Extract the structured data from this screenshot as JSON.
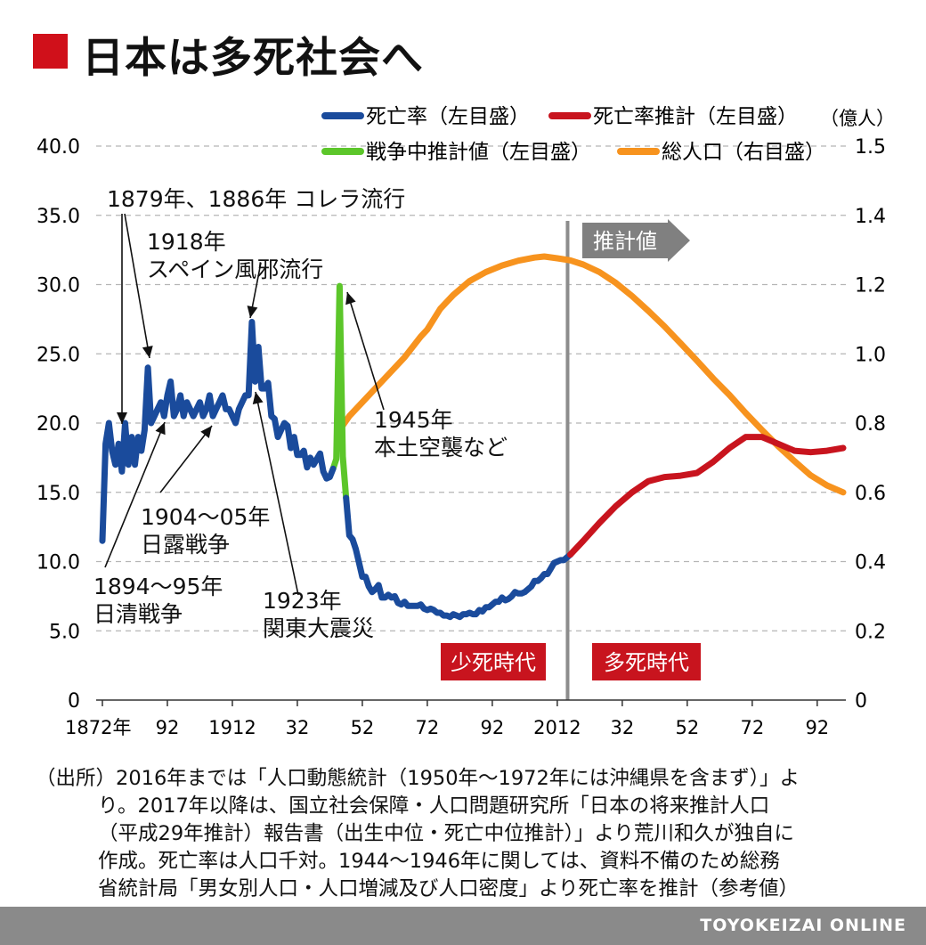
{
  "header": {
    "title": "日本は多死社会へ",
    "square_color": "#d0101a"
  },
  "chart_data": {
    "type": "line",
    "title": "日本は多死社会へ",
    "left_axis": {
      "range": [
        0,
        40
      ],
      "ticks": [
        "0",
        "5.0",
        "10.0",
        "15.0",
        "20.0",
        "25.0",
        "30.0",
        "35.0",
        "40.0"
      ]
    },
    "right_axis": {
      "unit": "（億人）",
      "range": [
        0,
        1.6
      ],
      "ticks": [
        "0",
        "0.2",
        "0.4",
        "0.6",
        "0.8",
        "1.0",
        "1.2",
        "1.4",
        "1.5"
      ]
    },
    "x_axis": {
      "range": [
        1872,
        2100
      ],
      "ticks": [
        {
          "year": 1872,
          "label": "1872年"
        },
        {
          "year": 1892,
          "label": "92"
        },
        {
          "year": 1912,
          "label": "1912"
        },
        {
          "year": 1932,
          "label": "32"
        },
        {
          "year": 1952,
          "label": "52"
        },
        {
          "year": 1972,
          "label": "72"
        },
        {
          "year": 1992,
          "label": "92"
        },
        {
          "year": 2012,
          "label": "2012"
        },
        {
          "year": 2032,
          "label": "32"
        },
        {
          "year": 2052,
          "label": "52"
        },
        {
          "year": 2072,
          "label": "72"
        },
        {
          "year": 2092,
          "label": "92"
        }
      ]
    },
    "divider_year": 2016,
    "legend": [
      {
        "label": "死亡率（左目盛）",
        "color": "#1a4b9c"
      },
      {
        "label": "死亡率推計（左目盛）",
        "color": "#c8141e"
      },
      {
        "label": "戦争中推計値（左目盛）",
        "color": "#5cc62a"
      },
      {
        "label": "総人口（右目盛）",
        "color": "#f7931e"
      }
    ],
    "series": [
      {
        "name": "死亡率",
        "axis": "left",
        "color": "#1a4b9c",
        "points": [
          [
            1872,
            11.5
          ],
          [
            1873,
            18.5
          ],
          [
            1874,
            20
          ],
          [
            1875,
            18
          ],
          [
            1876,
            17
          ],
          [
            1877,
            18.5
          ],
          [
            1878,
            16.5
          ],
          [
            1879,
            20
          ],
          [
            1880,
            17
          ],
          [
            1881,
            19
          ],
          [
            1882,
            17
          ],
          [
            1883,
            19
          ],
          [
            1884,
            18
          ],
          [
            1885,
            19.5
          ],
          [
            1886,
            24
          ],
          [
            1887,
            20
          ],
          [
            1888,
            20.5
          ],
          [
            1889,
            21
          ],
          [
            1890,
            21.5
          ],
          [
            1891,
            20.5
          ],
          [
            1892,
            22
          ],
          [
            1893,
            23
          ],
          [
            1894,
            20.5
          ],
          [
            1895,
            21
          ],
          [
            1896,
            22
          ],
          [
            1897,
            20.5
          ],
          [
            1898,
            21.5
          ],
          [
            1899,
            21
          ],
          [
            1900,
            20.5
          ],
          [
            1901,
            21
          ],
          [
            1902,
            21.5
          ],
          [
            1903,
            20.5
          ],
          [
            1904,
            21
          ],
          [
            1905,
            22
          ],
          [
            1906,
            20.5
          ],
          [
            1907,
            21
          ],
          [
            1908,
            21.5
          ],
          [
            1909,
            22
          ],
          [
            1910,
            21
          ],
          [
            1911,
            21
          ],
          [
            1912,
            20.5
          ],
          [
            1913,
            20
          ],
          [
            1914,
            21
          ],
          [
            1915,
            21.5
          ],
          [
            1916,
            22
          ],
          [
            1917,
            22
          ],
          [
            1918,
            27.3
          ],
          [
            1919,
            23
          ],
          [
            1920,
            25.5
          ],
          [
            1921,
            22.5
          ],
          [
            1922,
            22.5
          ],
          [
            1923,
            22.9
          ],
          [
            1924,
            20.5
          ],
          [
            1925,
            20.3
          ],
          [
            1926,
            19
          ],
          [
            1927,
            19.5
          ],
          [
            1928,
            20
          ],
          [
            1929,
            19.8
          ],
          [
            1930,
            18.2
          ],
          [
            1931,
            19
          ],
          [
            1932,
            17.7
          ],
          [
            1933,
            17.7
          ],
          [
            1934,
            18
          ],
          [
            1935,
            16.8
          ],
          [
            1936,
            17.5
          ],
          [
            1937,
            17
          ],
          [
            1938,
            17.4
          ],
          [
            1939,
            17.8
          ],
          [
            1940,
            16.5
          ],
          [
            1941,
            16
          ],
          [
            1942,
            16.1
          ],
          [
            1943,
            16.7
          ]
        ]
      },
      {
        "name": "死亡率（戦後）",
        "axis": "left",
        "color": "#1a4b9c",
        "points": [
          [
            1947,
            14.6
          ],
          [
            1948,
            11.9
          ],
          [
            1949,
            11.6
          ],
          [
            1950,
            10.9
          ],
          [
            1951,
            9.9
          ],
          [
            1952,
            8.9
          ],
          [
            1953,
            8.9
          ],
          [
            1954,
            8.2
          ],
          [
            1955,
            7.8
          ],
          [
            1956,
            8
          ],
          [
            1957,
            8.3
          ],
          [
            1958,
            7.4
          ],
          [
            1959,
            7.4
          ],
          [
            1960,
            7.6
          ],
          [
            1961,
            7.4
          ],
          [
            1962,
            7.5
          ],
          [
            1963,
            7
          ],
          [
            1964,
            6.9
          ],
          [
            1965,
            7.1
          ],
          [
            1966,
            6.8
          ],
          [
            1967,
            6.8
          ],
          [
            1968,
            6.8
          ],
          [
            1969,
            6.8
          ],
          [
            1970,
            6.9
          ],
          [
            1971,
            6.6
          ],
          [
            1972,
            6.5
          ],
          [
            1973,
            6.6
          ],
          [
            1974,
            6.5
          ],
          [
            1975,
            6.3
          ],
          [
            1976,
            6.3
          ],
          [
            1977,
            6.1
          ],
          [
            1978,
            6.1
          ],
          [
            1979,
            6
          ],
          [
            1980,
            6.2
          ],
          [
            1981,
            6.1
          ],
          [
            1982,
            6
          ],
          [
            1983,
            6.2
          ],
          [
            1984,
            6.2
          ],
          [
            1985,
            6.3
          ],
          [
            1986,
            6.2
          ],
          [
            1987,
            6.2
          ],
          [
            1988,
            6.5
          ],
          [
            1989,
            6.4
          ],
          [
            1990,
            6.7
          ],
          [
            1991,
            6.7
          ],
          [
            1992,
            6.9
          ],
          [
            1993,
            7.1
          ],
          [
            1994,
            7.1
          ],
          [
            1995,
            7.4
          ],
          [
            1996,
            7.2
          ],
          [
            1997,
            7.3
          ],
          [
            1998,
            7.5
          ],
          [
            1999,
            7.8
          ],
          [
            2000,
            7.7
          ],
          [
            2001,
            7.7
          ],
          [
            2002,
            7.8
          ],
          [
            2003,
            8
          ],
          [
            2004,
            8.2
          ],
          [
            2005,
            8.6
          ],
          [
            2006,
            8.6
          ],
          [
            2007,
            8.8
          ],
          [
            2008,
            9.1
          ],
          [
            2009,
            9.1
          ],
          [
            2010,
            9.5
          ],
          [
            2011,
            9.9
          ],
          [
            2012,
            10
          ],
          [
            2013,
            10.1
          ],
          [
            2014,
            10.1
          ],
          [
            2015,
            10.3
          ],
          [
            2016,
            10.5
          ]
        ]
      },
      {
        "name": "死亡率推計",
        "axis": "left",
        "color": "#c8141e",
        "points": [
          [
            2016,
            10.5
          ],
          [
            2020,
            11.5
          ],
          [
            2025,
            12.8
          ],
          [
            2030,
            14
          ],
          [
            2035,
            15
          ],
          [
            2040,
            15.8
          ],
          [
            2045,
            16.1
          ],
          [
            2050,
            16.2
          ],
          [
            2055,
            16.4
          ],
          [
            2060,
            17.2
          ],
          [
            2065,
            18.2
          ],
          [
            2070,
            19
          ],
          [
            2075,
            19
          ],
          [
            2080,
            18.5
          ],
          [
            2085,
            18
          ],
          [
            2090,
            17.9
          ],
          [
            2095,
            18
          ],
          [
            2100,
            18.2
          ]
        ]
      },
      {
        "name": "戦争中推計値",
        "axis": "left",
        "color": "#5cc62a",
        "points": [
          [
            1943,
            16.7
          ],
          [
            1944,
            17.4
          ],
          [
            1945,
            29.9
          ],
          [
            1946,
            17.6
          ],
          [
            1947,
            14.6
          ]
        ]
      },
      {
        "name": "総人口",
        "axis": "right",
        "color": "#f7931e",
        "points": [
          [
            1945,
            0.78
          ],
          [
            1948,
            0.82
          ],
          [
            1952,
            0.86
          ],
          [
            1956,
            0.9
          ],
          [
            1960,
            0.94
          ],
          [
            1965,
            0.99
          ],
          [
            1970,
            1.05
          ],
          [
            1972,
            1.07
          ],
          [
            1976,
            1.13
          ],
          [
            1980,
            1.17
          ],
          [
            1985,
            1.21
          ],
          [
            1990,
            1.236
          ],
          [
            1995,
            1.255
          ],
          [
            2000,
            1.269
          ],
          [
            2005,
            1.278
          ],
          [
            2008,
            1.281
          ],
          [
            2012,
            1.276
          ],
          [
            2016,
            1.27
          ],
          [
            2020,
            1.258
          ],
          [
            2025,
            1.236
          ],
          [
            2030,
            1.205
          ],
          [
            2035,
            1.167
          ],
          [
            2040,
            1.124
          ],
          [
            2045,
            1.079
          ],
          [
            2050,
            1.03
          ],
          [
            2055,
            0.98
          ],
          [
            2060,
            0.929
          ],
          [
            2065,
            0.881
          ],
          [
            2070,
            0.829
          ],
          [
            2075,
            0.78
          ],
          [
            2080,
            0.733
          ],
          [
            2085,
            0.69
          ],
          [
            2090,
            0.649
          ],
          [
            2095,
            0.62
          ],
          [
            2100,
            0.6
          ]
        ]
      }
    ],
    "annotations": [
      {
        "lines": [
          "1879年、1886年 コレラ流行"
        ]
      },
      {
        "lines": [
          "1918年",
          "スペイン風邪流行"
        ]
      },
      {
        "lines": [
          "1945年",
          "本土空襲など"
        ]
      },
      {
        "lines": [
          "1904〜05年",
          "日露戦争"
        ]
      },
      {
        "lines": [
          "1894〜95年",
          "日清戦争"
        ]
      },
      {
        "lines": [
          "1923年",
          "関東大震災"
        ]
      }
    ],
    "arrow_label": "推計値",
    "era_labels": [
      {
        "label": "少死時代",
        "color": "#c8141e"
      },
      {
        "label": "多死時代",
        "color": "#c8141e"
      }
    ]
  },
  "source_note": {
    "lines": [
      "（出所）2016年までは「人口動態統計（1950年〜1972年には沖縄県を含まず）」よ",
      "り。2017年以降は、国立社会保障・人口問題研究所「日本の将来推計人口",
      "（平成29年推計）報告書（出生中位・死亡中位推計）」より荒川和久が独自に",
      "作成。死亡率は人口千対。1944〜1946年に関しては、資料不備のため総務",
      "省統計局「男女別人口・人口増減及び人口密度」より死亡率を推計（参考値）"
    ]
  },
  "footer": {
    "brand": "TOYOKEIZAI ONLINE"
  }
}
